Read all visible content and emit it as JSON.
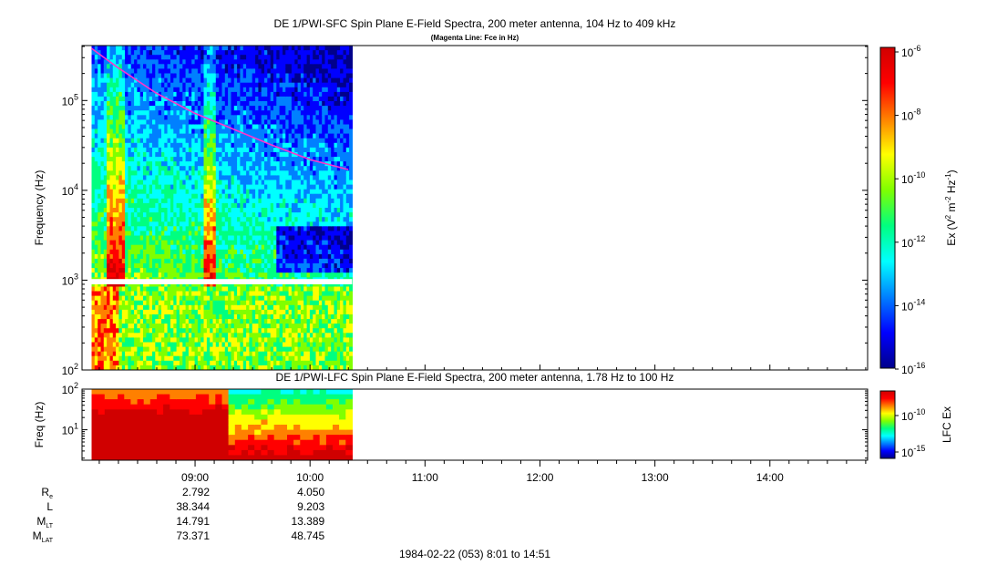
{
  "colors": {
    "background": "#ffffff",
    "magenta_line": "#ff33cc",
    "colorbar": [
      "#00008b",
      "#0000ff",
      "#0080ff",
      "#00ffff",
      "#00ff80",
      "#80ff00",
      "#ffff00",
      "#ff8000",
      "#ff0000",
      "#d00000"
    ]
  },
  "chart_data": [
    {
      "type": "heatmap",
      "title": "DE 1/PWI-SFC  Spin Plane E-Field Spectra, 200 meter antenna, 104 Hz to 409 kHz",
      "subtitle": "(Magenta Line: Fce in Hz)",
      "xlabel": "",
      "ylabel": "Frequency (Hz)",
      "y_scale": "log",
      "ylim": [
        100,
        409000
      ],
      "y_ticks": [
        {
          "value": 100,
          "base": "10",
          "exp": "2"
        },
        {
          "value": 1000,
          "base": "10",
          "exp": "3"
        },
        {
          "value": 10000,
          "base": "10",
          "exp": "4"
        },
        {
          "value": 100000,
          "base": "10",
          "exp": "5"
        }
      ],
      "data_time_range": [
        "08:06",
        "10:22"
      ],
      "data_gap_hz": [
        900,
        1030
      ],
      "colorbar": {
        "label": "Ex (V² m⁻² Hz⁻¹)",
        "label_parts": [
          "Ex (V",
          "2",
          " m",
          "-2",
          " Hz",
          "-1",
          ")"
        ],
        "scale": "log",
        "range": [
          1e-16,
          1e-06
        ],
        "ticks": [
          {
            "base": "10",
            "exp": "-6"
          },
          {
            "base": "10",
            "exp": "-8"
          },
          {
            "base": "10",
            "exp": "-10"
          },
          {
            "base": "10",
            "exp": "-12"
          },
          {
            "base": "10",
            "exp": "-14"
          },
          {
            "base": "10",
            "exp": "-16"
          }
        ]
      },
      "series": [
        {
          "name": "Fce",
          "type": "line",
          "x": [
            "08:06",
            "08:20",
            "08:40",
            "09:00",
            "09:20",
            "09:40",
            "10:00",
            "10:20"
          ],
          "y": [
            380000,
            230000,
            120000,
            72000,
            48000,
            32000,
            22000,
            17000
          ]
        }
      ]
    },
    {
      "type": "heatmap",
      "title": "DE 1/PWI-LFC  Spin Plane E-Field Spectra, 200 meter antenna, 1.78 Hz to 100 Hz",
      "xlabel": "",
      "ylabel": "Freq (Hz)",
      "y_scale": "log",
      "ylim": [
        1.78,
        100
      ],
      "y_ticks": [
        {
          "value": 10,
          "base": "10",
          "exp": "1"
        },
        {
          "value": 100,
          "base": "10",
          "exp": "2"
        }
      ],
      "data_time_range": [
        "08:06",
        "10:22"
      ],
      "colorbar": {
        "label": "LFC Ex",
        "scale": "log",
        "ticks": [
          {
            "base": "10",
            "exp": "-10"
          },
          {
            "base": "10",
            "exp": "-15"
          }
        ]
      }
    }
  ],
  "time_axis": {
    "range": [
      "08:01",
      "14:51"
    ],
    "labels": [
      "09:00",
      "10:00",
      "11:00",
      "12:00",
      "13:00",
      "14:00"
    ]
  },
  "ephemeris": {
    "rows": [
      {
        "label": "R",
        "sub": "e",
        "values": [
          "2.792",
          "4.050"
        ]
      },
      {
        "label": "L",
        "sub": "",
        "values": [
          "38.344",
          "9.203"
        ]
      },
      {
        "label": "M",
        "sub": "LT",
        "values": [
          "14.791",
          "13.389"
        ]
      },
      {
        "label": "M",
        "sub": "LAT",
        "values": [
          "73.371",
          "48.745"
        ]
      }
    ]
  },
  "footer": "1984-02-22 (053) 8:01 to 14:51"
}
